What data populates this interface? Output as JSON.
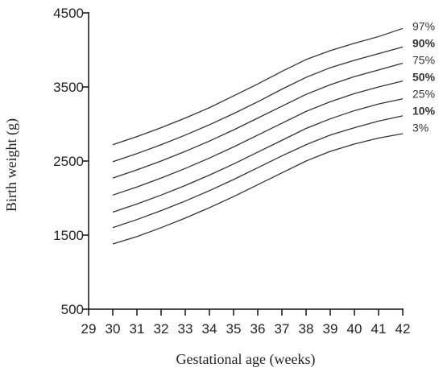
{
  "chart_data": {
    "type": "line",
    "x_label": "Gestational age (weeks)",
    "y_label": "Birth weight (g)",
    "x": [
      30,
      31,
      32,
      33,
      34,
      35,
      36,
      37,
      38,
      39,
      40,
      41,
      42
    ],
    "xlim": [
      29,
      42
    ],
    "xticks": [
      29,
      30,
      31,
      32,
      33,
      34,
      35,
      36,
      37,
      38,
      39,
      40,
      41,
      42
    ],
    "ylim": [
      500,
      4500
    ],
    "yticks": [
      500,
      1500,
      2500,
      3500,
      4500
    ],
    "series": [
      {
        "name": "97%",
        "color": "#333333",
        "bold": false,
        "values": [
          2720,
          2830,
          2950,
          3080,
          3220,
          3380,
          3540,
          3710,
          3870,
          3990,
          4090,
          4180,
          4290
        ]
      },
      {
        "name": "90%",
        "color": "#333333",
        "bold": true,
        "values": [
          2490,
          2600,
          2720,
          2850,
          2990,
          3140,
          3300,
          3470,
          3630,
          3760,
          3860,
          3950,
          4040
        ]
      },
      {
        "name": "75%",
        "color": "#333333",
        "bold": false,
        "values": [
          2270,
          2380,
          2500,
          2630,
          2770,
          2920,
          3080,
          3240,
          3400,
          3530,
          3640,
          3730,
          3820
        ]
      },
      {
        "name": "50%",
        "color": "#333333",
        "bold": true,
        "values": [
          2040,
          2150,
          2270,
          2400,
          2540,
          2690,
          2850,
          3010,
          3170,
          3300,
          3410,
          3500,
          3580
        ]
      },
      {
        "name": "25%",
        "color": "#333333",
        "bold": false,
        "values": [
          1810,
          1920,
          2040,
          2170,
          2310,
          2460,
          2620,
          2780,
          2940,
          3070,
          3180,
          3270,
          3340
        ]
      },
      {
        "name": "10%",
        "color": "#333333",
        "bold": true,
        "values": [
          1600,
          1710,
          1830,
          1960,
          2100,
          2250,
          2410,
          2570,
          2720,
          2850,
          2950,
          3040,
          3110
        ]
      },
      {
        "name": "3%",
        "color": "#333333",
        "bold": false,
        "values": [
          1380,
          1480,
          1600,
          1730,
          1870,
          2020,
          2180,
          2340,
          2500,
          2630,
          2730,
          2810,
          2870
        ]
      }
    ]
  }
}
